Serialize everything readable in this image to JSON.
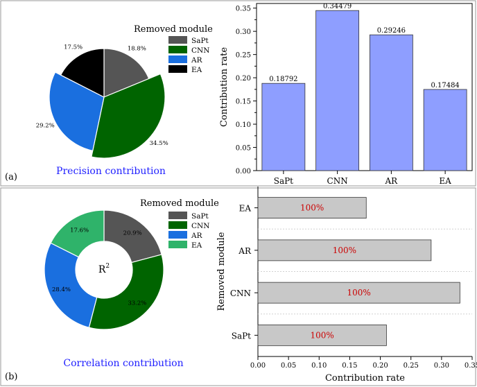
{
  "colors": {
    "sapt": "#555555",
    "cnn": "#006400",
    "ar": "#1a6fdf",
    "ea_a": "#000000",
    "ea_b": "#2fb36a",
    "bar_a": "#8e9eff",
    "bar_b": "#c8c8c8",
    "hundred": "#cc0000",
    "caption": "#2020ff"
  },
  "panel_a": {
    "label": "(a)",
    "caption": "Precision contribution",
    "legend_title": "Removed module",
    "pie": {
      "slices": [
        {
          "name": "SaPt",
          "value": 18.8,
          "label": "18.8%"
        },
        {
          "name": "CNN",
          "value": 34.5,
          "label": "34.5%"
        },
        {
          "name": "AR",
          "value": 29.2,
          "label": "29.2%"
        },
        {
          "name": "EA",
          "value": 17.5,
          "label": "17.5%"
        }
      ]
    }
  },
  "panel_b": {
    "label": "(b)",
    "caption": "Correlation contribution",
    "legend_title": "Removed module",
    "donut_center": "R",
    "donut_center_sup": "2",
    "pie": {
      "slices": [
        {
          "name": "SaPt",
          "value": 20.9,
          "label": "20.9%"
        },
        {
          "name": "CNN",
          "value": 33.2,
          "label": "33.2%"
        },
        {
          "name": "AR",
          "value": 28.4,
          "label": "28.4%"
        },
        {
          "name": "EA",
          "value": 17.6,
          "label": "17.6%"
        }
      ]
    }
  },
  "chart_data": [
    {
      "type": "pie",
      "title": "Precision contribution",
      "legend_title": "Removed module",
      "categories": [
        "SaPt",
        "CNN",
        "AR",
        "EA"
      ],
      "values": [
        18.8,
        34.5,
        29.2,
        17.5
      ],
      "labels": [
        "18.8%",
        "34.5%",
        "29.2%",
        "17.5%"
      ]
    },
    {
      "type": "bar",
      "orientation": "vertical",
      "categories": [
        "SaPt",
        "CNN",
        "AR",
        "EA"
      ],
      "values": [
        0.18792,
        0.34479,
        0.29246,
        0.17484
      ],
      "value_labels": [
        "0.18792",
        "0.34479",
        "0.29246",
        "0.17484"
      ],
      "xlabel": "",
      "ylabel": "Contribution rate",
      "ylim": [
        0,
        0.36
      ],
      "yticks": [
        "0.00",
        "0.05",
        "0.10",
        "0.15",
        "0.20",
        "0.25",
        "0.30",
        "0.35"
      ],
      "ytick_values": [
        0,
        0.05,
        0.1,
        0.15,
        0.2,
        0.25,
        0.3,
        0.35
      ]
    },
    {
      "type": "pie",
      "subtype": "donut",
      "title": "Correlation contribution",
      "legend_title": "Removed module",
      "categories": [
        "SaPt",
        "CNN",
        "AR",
        "EA"
      ],
      "values": [
        20.9,
        33.2,
        28.4,
        17.6
      ],
      "labels": [
        "20.9%",
        "33.2%",
        "28.4%",
        "17.6%"
      ]
    },
    {
      "type": "bar",
      "orientation": "horizontal",
      "categories": [
        "SaPt",
        "CNN",
        "AR",
        "EA"
      ],
      "values": [
        0.21,
        0.33,
        0.283,
        0.177
      ],
      "bar_labels": [
        "100%",
        "100%",
        "100%",
        "100%"
      ],
      "xlabel": "Contribution rate",
      "ylabel": "Removed module",
      "xlim": [
        0,
        0.35
      ],
      "xticks": [
        "0.00",
        "0.05",
        "0.10",
        "0.15",
        "0.20",
        "0.25",
        "0.30",
        "0.35"
      ],
      "xtick_values": [
        0,
        0.05,
        0.1,
        0.15,
        0.2,
        0.25,
        0.3,
        0.35
      ]
    }
  ]
}
